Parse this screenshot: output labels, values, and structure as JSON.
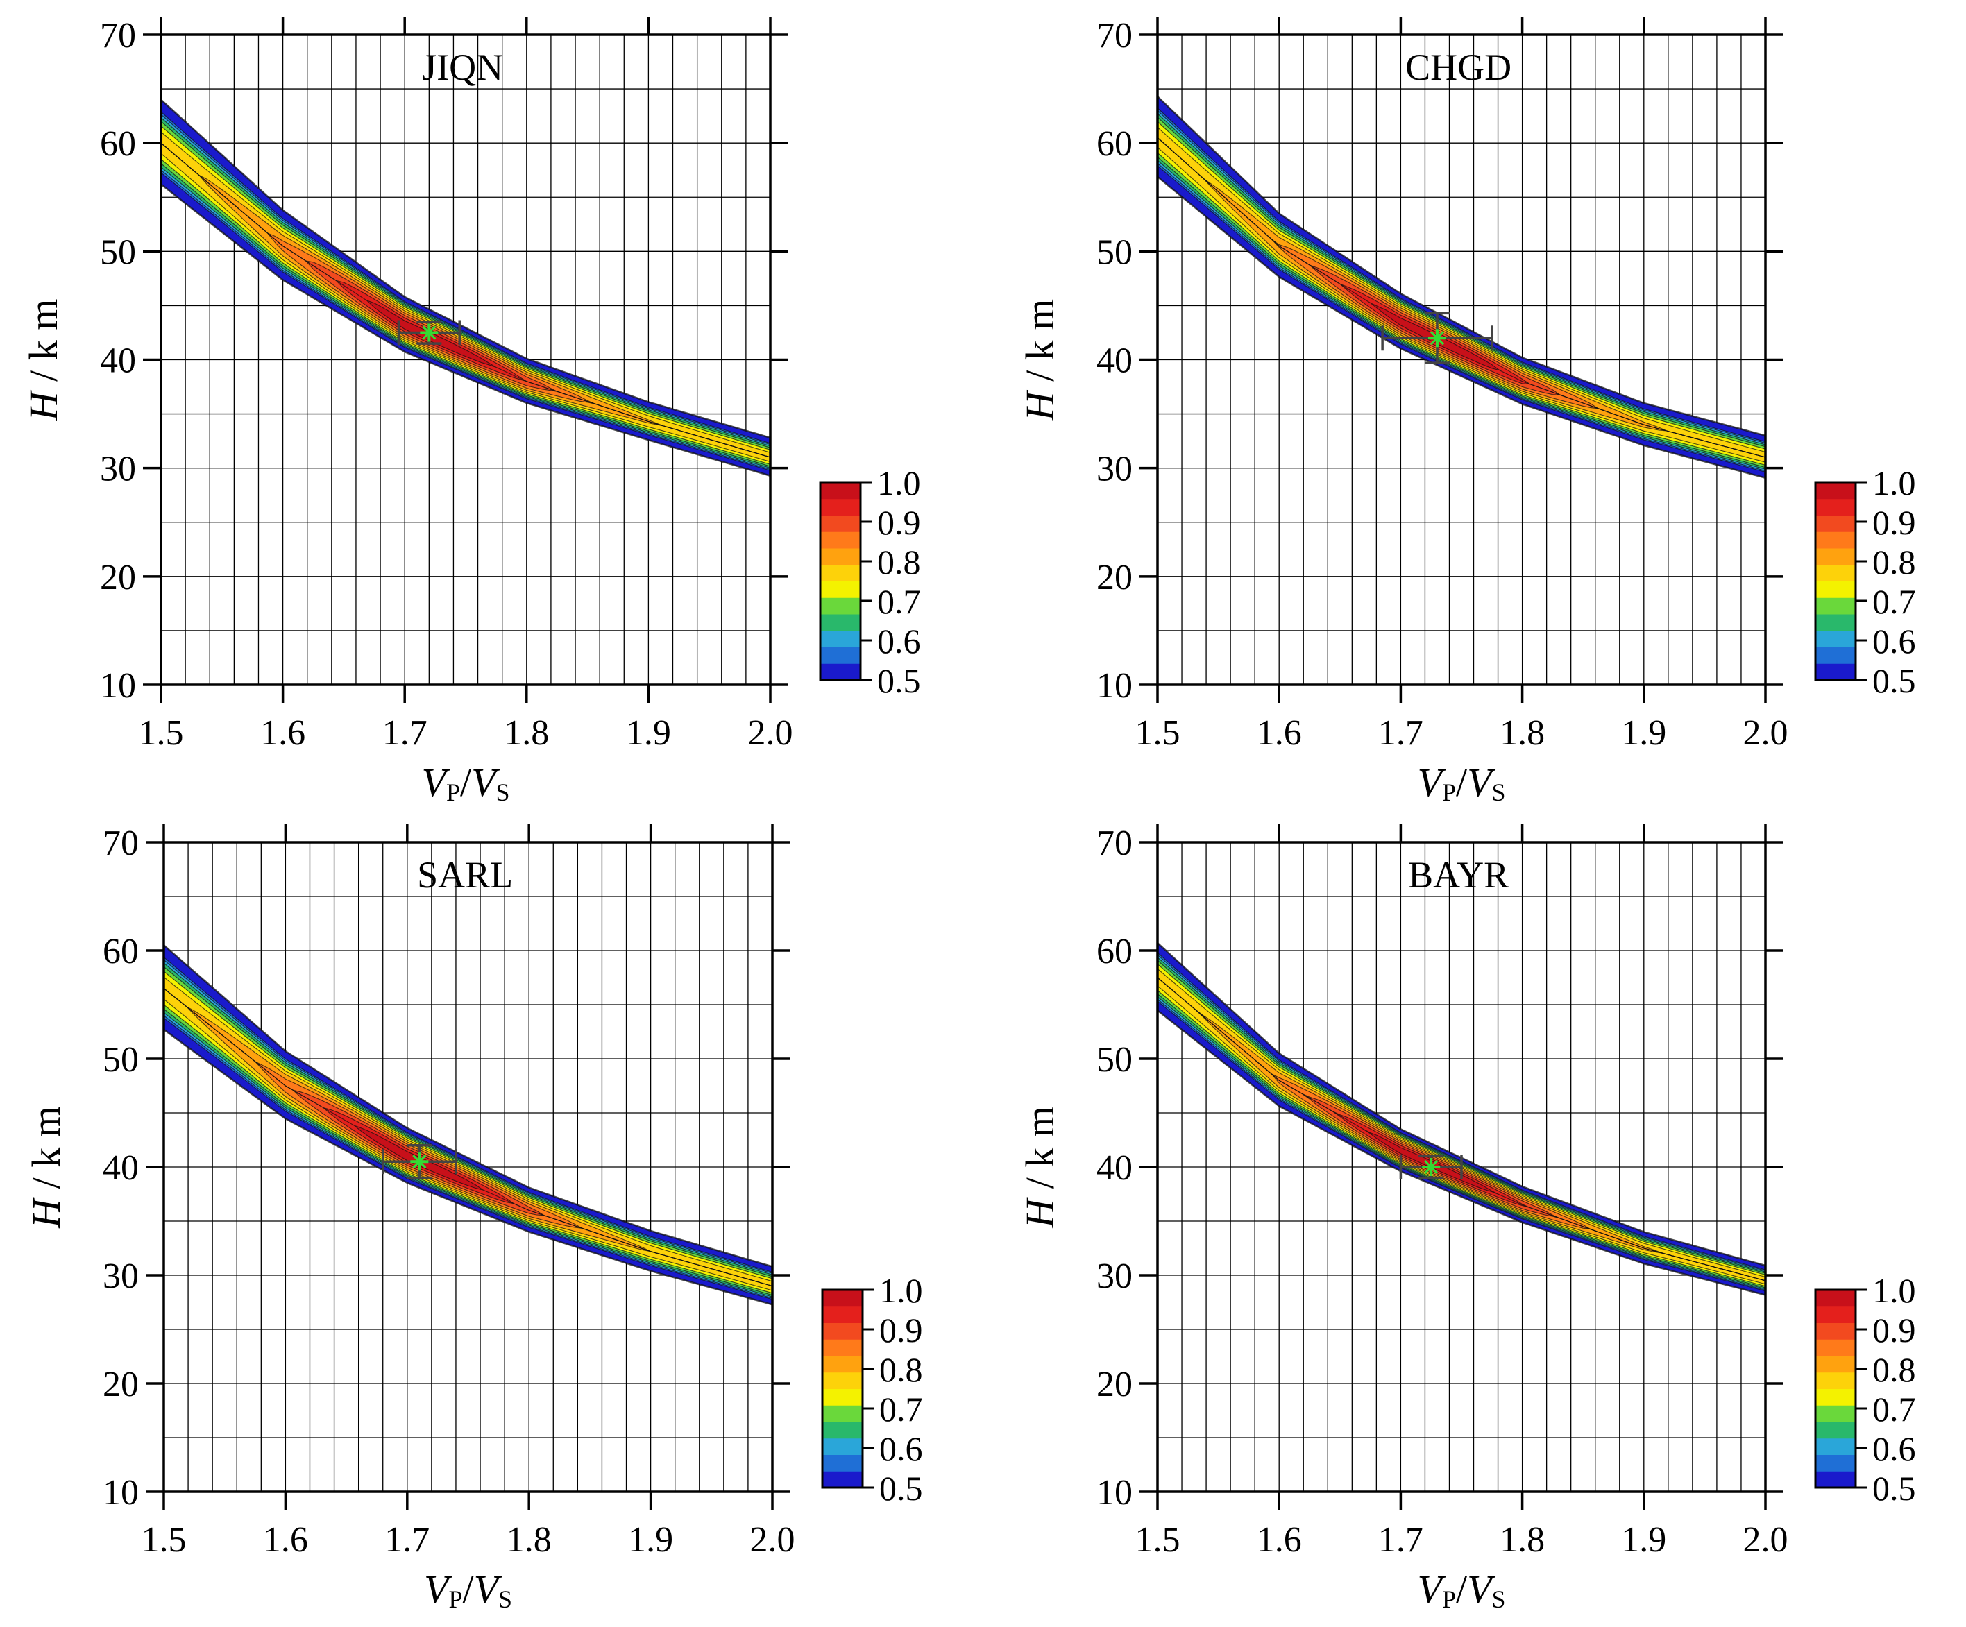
{
  "figure": {
    "palette": [
      "#1a1acc",
      "#1f6fd6",
      "#2aa6d9",
      "#29b86b",
      "#6ad83b",
      "#f4f200",
      "#fdd20a",
      "#ffa20f",
      "#ff7a1a",
      "#f24a1f",
      "#e4201c",
      "#c8101a"
    ],
    "contour_levels": [
      0.5,
      0.55,
      0.6,
      0.65,
      0.7,
      0.75,
      0.8,
      0.85,
      0.9,
      0.95,
      1.0
    ],
    "colorbar_ticks": [
      "1.0",
      "0.9",
      "0.8",
      "0.7",
      "0.6",
      "0.5"
    ],
    "grid_line_color": "#000000",
    "marker_color": "#33dd33",
    "errorbar_color": "#444444"
  },
  "chart_data": [
    {
      "type": "heatmap",
      "title": "JIQN",
      "xlabel": "VP/VS",
      "ylabel": "H/km",
      "xlim": [
        1.5,
        2.0
      ],
      "ylim": [
        10,
        70
      ],
      "xticks": [
        "1.5",
        "1.6",
        "1.7",
        "1.8",
        "1.9",
        "2.0"
      ],
      "yticks": [
        "10",
        "20",
        "30",
        "40",
        "50",
        "60",
        "70"
      ],
      "grid": true,
      "colorbar": {
        "min": 0.5,
        "max": 1.0,
        "position": "right"
      },
      "ridge": {
        "x": [
          1.5,
          1.6,
          1.7,
          1.8,
          1.9,
          2.0
        ],
        "y": [
          60.0,
          50.5,
          43.2,
          38.0,
          34.3,
          31.0
        ]
      },
      "band_halfwidth": {
        "x": [
          1.5,
          1.6,
          1.7,
          1.8,
          1.9,
          2.0
        ],
        "y": [
          4.0,
          3.3,
          2.6,
          2.1,
          1.8,
          1.8
        ]
      },
      "best": {
        "vpvs": 1.72,
        "H": 42.5
      },
      "errorbar": {
        "dvpvs": 0.025,
        "dH": 1.0
      }
    },
    {
      "type": "heatmap",
      "title": "CHGD",
      "xlabel": "VP/VS",
      "ylabel": "H/km",
      "xlim": [
        1.5,
        2.0
      ],
      "ylim": [
        10,
        70
      ],
      "xticks": [
        "1.5",
        "1.6",
        "1.7",
        "1.8",
        "1.9",
        "2.0"
      ],
      "yticks": [
        "10",
        "20",
        "30",
        "40",
        "50",
        "60",
        "70"
      ],
      "grid": true,
      "colorbar": {
        "min": 0.5,
        "max": 1.0,
        "position": "right"
      },
      "ridge": {
        "x": [
          1.5,
          1.6,
          1.7,
          1.8,
          1.9,
          2.0
        ],
        "y": [
          60.5,
          50.5,
          43.5,
          38.0,
          34.0,
          31.0
        ]
      },
      "band_halfwidth": {
        "x": [
          1.5,
          1.6,
          1.7,
          1.8,
          1.9,
          2.0
        ],
        "y": [
          3.8,
          3.0,
          2.6,
          2.2,
          2.0,
          2.0
        ]
      },
      "best": {
        "vpvs": 1.73,
        "H": 42.0
      },
      "errorbar": {
        "dvpvs": 0.045,
        "dH": 2.3
      }
    },
    {
      "type": "heatmap",
      "title": "SARL",
      "xlabel": "VP/VS",
      "ylabel": "H/km",
      "xlim": [
        1.5,
        2.0
      ],
      "ylim": [
        10,
        70
      ],
      "xticks": [
        "1.5",
        "1.6",
        "1.7",
        "1.8",
        "1.9",
        "2.0"
      ],
      "yticks": [
        "10",
        "20",
        "30",
        "40",
        "50",
        "60",
        "70"
      ],
      "grid": true,
      "colorbar": {
        "min": 0.5,
        "max": 1.0,
        "position": "right"
      },
      "ridge": {
        "x": [
          1.5,
          1.6,
          1.7,
          1.8,
          1.9,
          2.0
        ],
        "y": [
          56.5,
          47.5,
          41.0,
          36.0,
          32.2,
          29.0
        ]
      },
      "band_halfwidth": {
        "x": [
          1.5,
          1.6,
          1.7,
          1.8,
          1.9,
          2.0
        ],
        "y": [
          4.0,
          3.2,
          2.6,
          2.1,
          1.9,
          1.8
        ]
      },
      "best": {
        "vpvs": 1.71,
        "H": 40.5
      },
      "errorbar": {
        "dvpvs": 0.03,
        "dH": 1.5
      }
    },
    {
      "type": "heatmap",
      "title": "BAYR",
      "xlabel": "VP/VS",
      "ylabel": "H/km",
      "xlim": [
        1.5,
        2.0
      ],
      "ylim": [
        10,
        70
      ],
      "xticks": [
        "1.5",
        "1.6",
        "1.7",
        "1.8",
        "1.9",
        "2.0"
      ],
      "yticks": [
        "10",
        "20",
        "30",
        "40",
        "50",
        "60",
        "70"
      ],
      "grid": true,
      "colorbar": {
        "min": 0.5,
        "max": 1.0,
        "position": "right"
      },
      "ridge": {
        "x": [
          1.5,
          1.6,
          1.7,
          1.8,
          1.9,
          2.0
        ],
        "y": [
          57.5,
          48.0,
          41.5,
          36.5,
          32.5,
          29.5
        ]
      },
      "band_halfwidth": {
        "x": [
          1.5,
          1.6,
          1.7,
          1.8,
          1.9,
          2.0
        ],
        "y": [
          3.2,
          2.5,
          2.0,
          1.7,
          1.5,
          1.4
        ]
      },
      "best": {
        "vpvs": 1.725,
        "H": 40.0
      },
      "errorbar": {
        "dvpvs": 0.025,
        "dH": 1.0
      }
    }
  ]
}
